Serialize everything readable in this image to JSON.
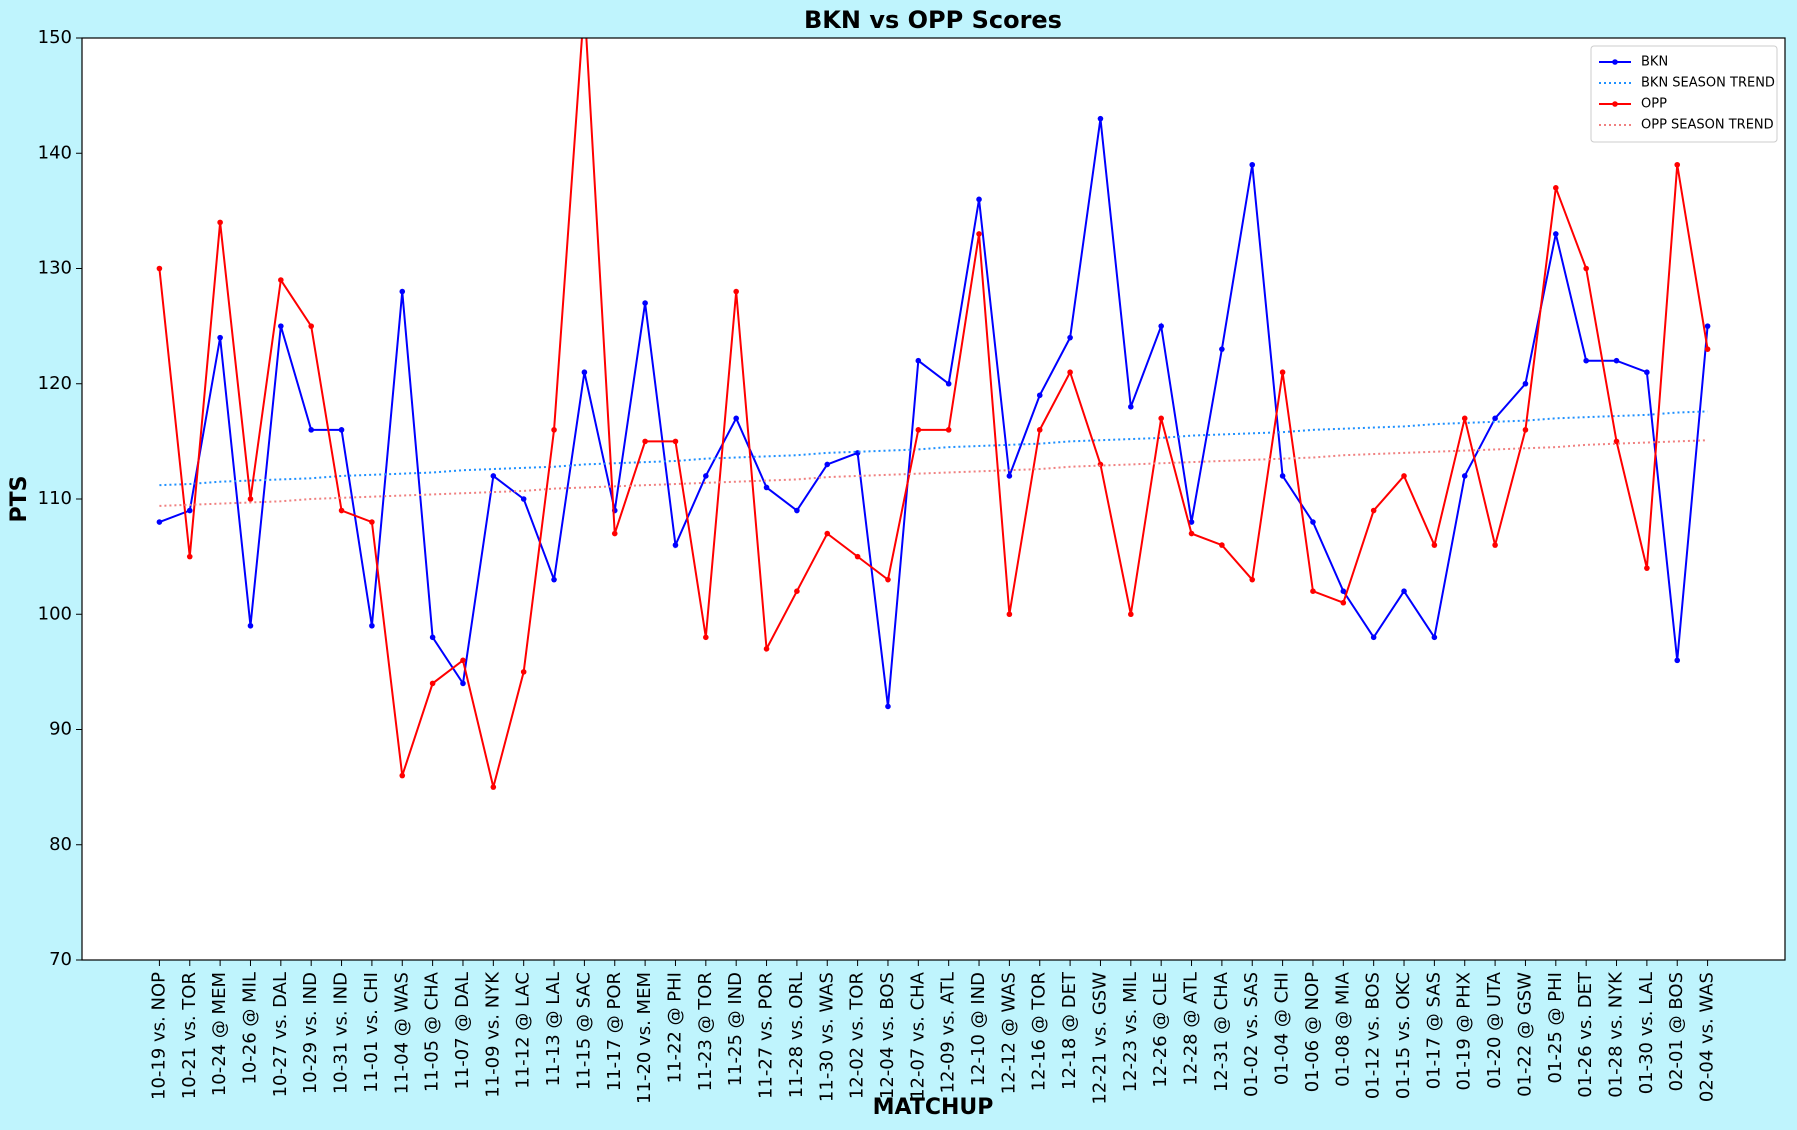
{
  "chart_data": {
    "type": "line",
    "title": "BKN vs OPP Scores",
    "x_label": "MATCHUP",
    "y_label": "PTS",
    "categories": [
      "10-19 vs. NOP",
      "10-21 vs. TOR",
      "10-24 @ MEM",
      "10-26 @ MIL",
      "10-27 vs. DAL",
      "10-29 vs. IND",
      "10-31 vs. IND",
      "11-01 vs. CHI",
      "11-04 @ WAS",
      "11-05 @ CHA",
      "11-07 @ DAL",
      "11-09 vs. NYK",
      "11-12 @ LAC",
      "11-13 @ LAL",
      "11-15 @ SAC",
      "11-17 @ POR",
      "11-20 vs. MEM",
      "11-22 @ PHI",
      "11-23 @ TOR",
      "11-25 @ IND",
      "11-27 vs. POR",
      "11-28 vs. ORL",
      "11-30 vs. WAS",
      "12-02 vs. TOR",
      "12-04 vs. BOS",
      "12-07 vs. CHA",
      "12-09 vs. ATL",
      "12-10 @ IND",
      "12-12 @ WAS",
      "12-16 @ TOR",
      "12-18 @ DET",
      "12-21 vs. GSW",
      "12-23 vs. MIL",
      "12-26 @ CLE",
      "12-28 @ ATL",
      "12-31 @ CHA",
      "01-02 vs. SAS",
      "01-04 @ CHI",
      "01-06 @ NOP",
      "01-08 @ MIA",
      "01-12 vs. BOS",
      "01-15 vs. OKC",
      "01-17 @ SAS",
      "01-19 @ PHX",
      "01-20 @ UTA",
      "01-22 @ GSW",
      "01-25 @ PHI",
      "01-26 vs. DET",
      "01-28 vs. NYK",
      "01-30 vs. LAL",
      "02-01 @ BOS",
      "02-04 vs. WAS"
    ],
    "series": [
      {
        "name": "BKN",
        "color": "#0000ff",
        "style": "solid",
        "marker": true,
        "values": [
          108,
          109,
          124,
          99,
          125,
          116,
          116,
          99,
          128,
          98,
          94,
          112,
          110,
          103,
          121,
          109,
          127,
          106,
          112,
          117,
          111,
          109,
          113,
          114,
          92,
          122,
          120,
          136,
          112,
          119,
          124,
          143,
          118,
          125,
          108,
          123,
          139,
          112,
          108,
          102,
          98,
          102,
          98,
          112,
          117,
          120,
          133,
          122,
          122,
          121,
          96,
          125
        ]
      },
      {
        "name": "BKN SEASON TREND",
        "color": "#1e90ff",
        "style": "dotted",
        "marker": false,
        "values": [
          111.2,
          111.3,
          111.5,
          111.6,
          111.7,
          111.8,
          112.0,
          112.1,
          112.2,
          112.3,
          112.5,
          112.6,
          112.7,
          112.8,
          113.0,
          113.1,
          113.2,
          113.3,
          113.5,
          113.6,
          113.7,
          113.8,
          114.0,
          114.1,
          114.2,
          114.3,
          114.5,
          114.6,
          114.7,
          114.8,
          115.0,
          115.1,
          115.2,
          115.3,
          115.5,
          115.6,
          115.7,
          115.8,
          116.0,
          116.1,
          116.2,
          116.3,
          116.5,
          116.6,
          116.7,
          116.8,
          117.0,
          117.1,
          117.2,
          117.3,
          117.5,
          117.6
        ]
      },
      {
        "name": "OPP",
        "color": "#ff0000",
        "style": "solid",
        "marker": true,
        "values": [
          130,
          105,
          134,
          110,
          129,
          125,
          109,
          108,
          86,
          94,
          96,
          85,
          95,
          116,
          153,
          107,
          115,
          115,
          98,
          128,
          97,
          102,
          107,
          105,
          103,
          116,
          116,
          133,
          100,
          116,
          121,
          113,
          100,
          117,
          107,
          106,
          103,
          121,
          102,
          101,
          109,
          112,
          106,
          117,
          106,
          116,
          137,
          130,
          115,
          104,
          139,
          123
        ]
      },
      {
        "name": "OPP SEASON TREND",
        "color": "#f08080",
        "style": "dotted",
        "marker": false,
        "values": [
          109.4,
          109.5,
          109.6,
          109.7,
          109.8,
          110.0,
          110.1,
          110.2,
          110.3,
          110.4,
          110.5,
          110.6,
          110.7,
          110.9,
          111.0,
          111.1,
          111.2,
          111.3,
          111.4,
          111.5,
          111.6,
          111.7,
          111.9,
          112.0,
          112.1,
          112.2,
          112.3,
          112.4,
          112.5,
          112.6,
          112.8,
          112.9,
          113.0,
          113.1,
          113.2,
          113.3,
          113.4,
          113.5,
          113.6,
          113.8,
          113.9,
          114.0,
          114.1,
          114.2,
          114.3,
          114.4,
          114.5,
          114.7,
          114.8,
          114.9,
          115.0,
          115.1
        ]
      }
    ],
    "ylim": [
      70,
      150
    ],
    "yticks": [
      70,
      80,
      90,
      100,
      110,
      120,
      130,
      140,
      150
    ],
    "grid": false,
    "legend": "upper right",
    "background": "#bff4fd"
  }
}
